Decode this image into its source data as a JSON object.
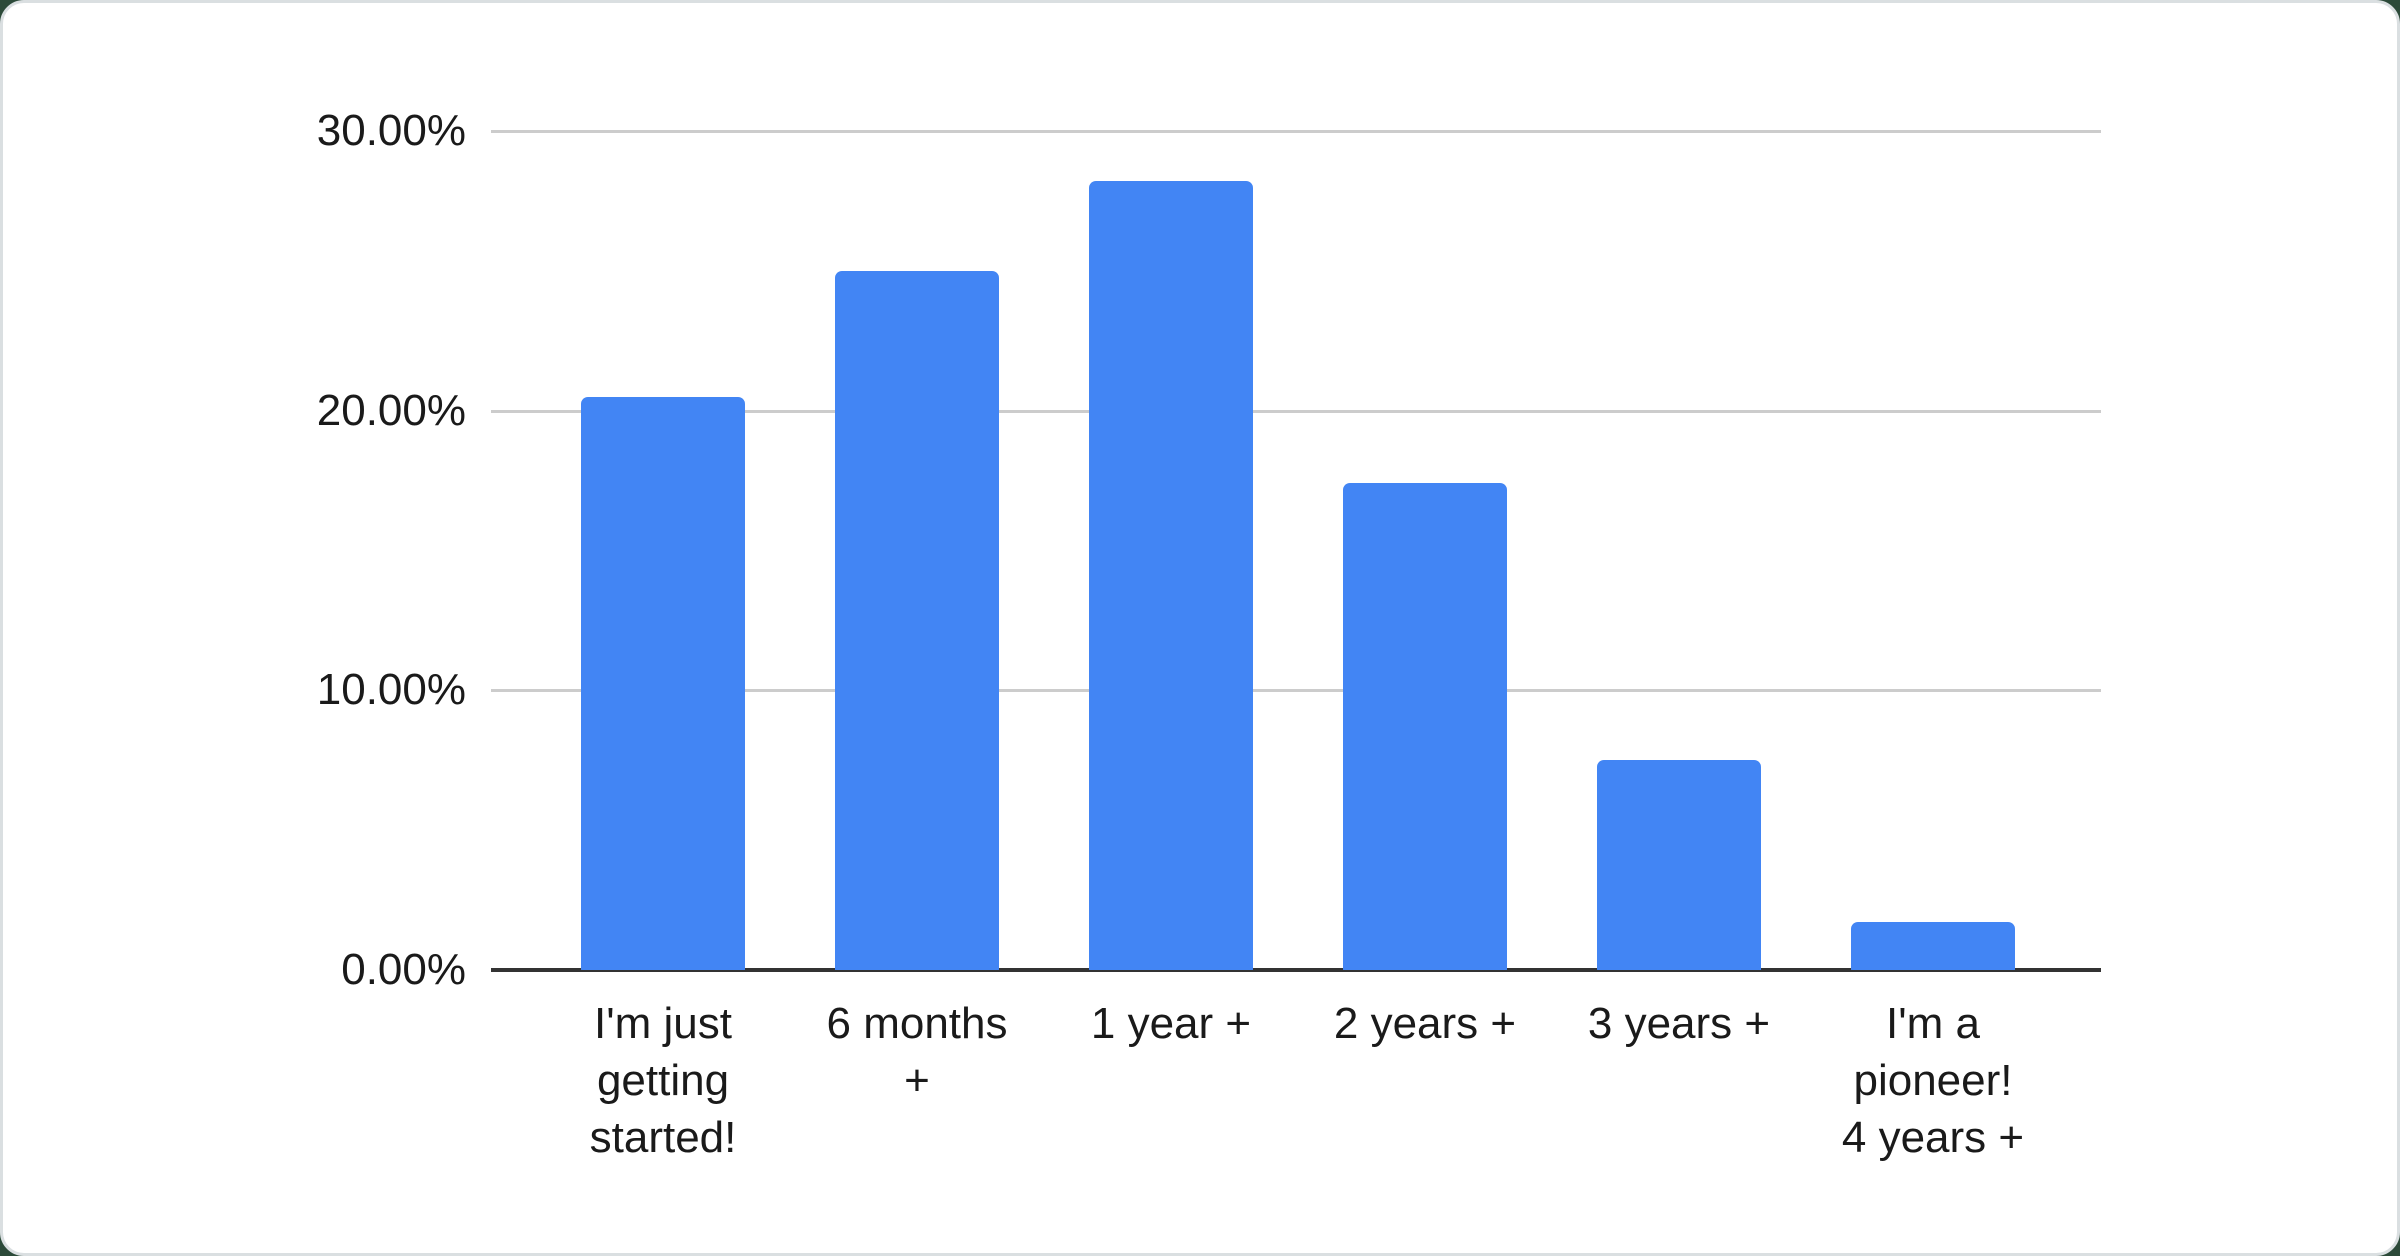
{
  "page": {
    "background_color": "#2c4a39",
    "card_background": "#ffffff",
    "card_border_color": "#dadfe1"
  },
  "chart_data": {
    "type": "bar",
    "categories": [
      "I'm just getting started!",
      "6 months +",
      "1 year +",
      "2 years +",
      "3 years +",
      "I'm a pioneer! 4 years +"
    ],
    "category_label_lines": [
      [
        "I'm just",
        "getting",
        "started!"
      ],
      [
        "6 months",
        "+"
      ],
      [
        "1 year +"
      ],
      [
        "2 years +"
      ],
      [
        "3 years +"
      ],
      [
        "I'm a",
        "pioneer!",
        "4 years +"
      ]
    ],
    "values": [
      20.5,
      25.0,
      28.2,
      17.4,
      7.5,
      1.7
    ],
    "value_unit": "percent",
    "ylim": [
      0,
      30
    ],
    "yticks": [
      {
        "value": 0,
        "label": "0.00%"
      },
      {
        "value": 10,
        "label": "10.00%"
      },
      {
        "value": 20,
        "label": "20.00%"
      },
      {
        "value": 30,
        "label": "30.00%"
      }
    ],
    "grid": true,
    "legend": false,
    "bar_color": "#4285f4",
    "gridline_color": "#cccccc",
    "axis_line_color": "#333333",
    "tick_label_color": "#1a1a1a"
  }
}
